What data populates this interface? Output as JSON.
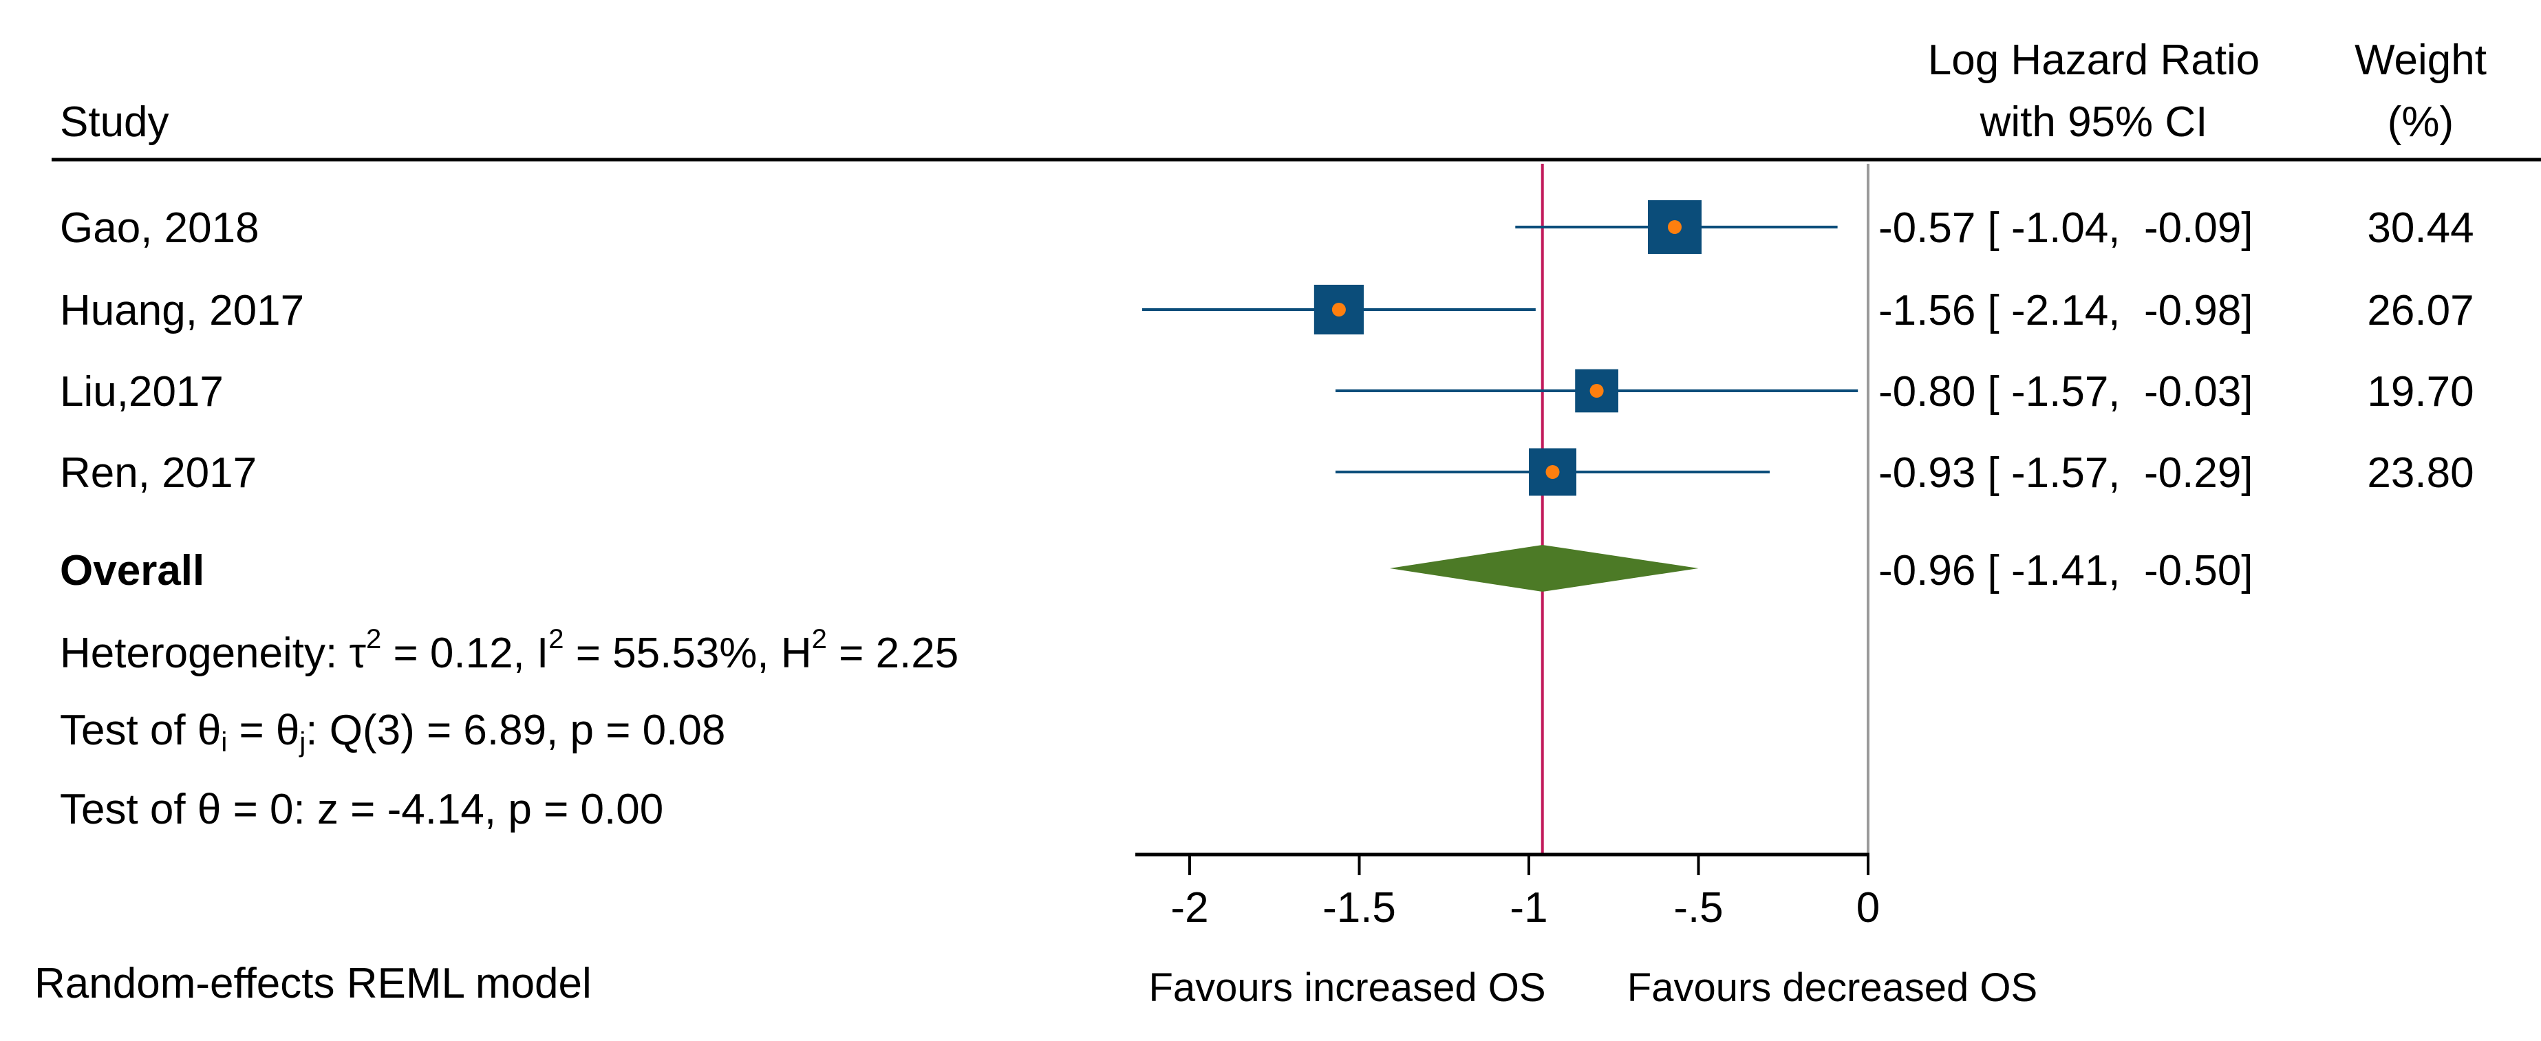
{
  "chart_data": {
    "type": "forest",
    "header": {
      "study": "Study",
      "effect_line1": "Log Hazard Ratio",
      "effect_line2": "with 95% CI",
      "weight_line1": "Weight",
      "weight_line2": "(%)"
    },
    "studies": [
      {
        "name": "Gao, 2018",
        "estimate": -0.57,
        "lower": -1.04,
        "upper": -0.09,
        "weight": 30.44,
        "ci_text": "-0.57 [ -1.04,  -0.09]",
        "weight_text": "30.44"
      },
      {
        "name": "Huang, 2017",
        "estimate": -1.56,
        "lower": -2.14,
        "upper": -0.98,
        "weight": 26.07,
        "ci_text": "-1.56 [ -2.14,  -0.98]",
        "weight_text": "26.07"
      },
      {
        "name": "Liu,2017",
        "estimate": -0.8,
        "lower": -1.57,
        "upper": -0.03,
        "weight": 19.7,
        "ci_text": "-0.80 [ -1.57,  -0.03]",
        "weight_text": "19.70"
      },
      {
        "name": "Ren, 2017",
        "estimate": -0.93,
        "lower": -1.57,
        "upper": -0.29,
        "weight": 23.8,
        "ci_text": "-0.93 [ -1.57,  -0.29]",
        "weight_text": "23.80"
      }
    ],
    "overall": {
      "label": "Overall",
      "estimate": -0.96,
      "lower": -1.41,
      "upper": -0.5,
      "ci_text": "-0.96 [ -1.41,  -0.50]"
    },
    "heterogeneity": {
      "prefix": "Heterogeneity: τ",
      "tau2": " = 0.12, I",
      "i2": " = 55.53%, H",
      "h2": " = 2.25",
      "sup": "2"
    },
    "test_homogeneity": {
      "prefix": "Test of θ",
      "sub_i": "i",
      "mid": " = θ",
      "sub_j": "j",
      "suffix": ": Q(3) = 6.89, p = 0.08"
    },
    "test_overall": "Test of θ = 0: z = -4.14, p = 0.00",
    "x_axis": {
      "ticks": [
        -2,
        -1.5,
        -1,
        -0.5,
        0
      ],
      "tick_labels": [
        "-2",
        "-1.5",
        "-1",
        "-.5",
        "0"
      ],
      "xlim": [
        -2.15,
        0
      ],
      "reference_line": 0,
      "label_left": "Favours increased OS",
      "label_right": "Favours decreased OS"
    },
    "model_note": "Random-effects REML model",
    "colors": {
      "box": "#0b4d7a",
      "point": "#ff7f0e",
      "ci_line": "#0b4d7a",
      "diamond": "#4c7a26",
      "overall_line": "#c21a5b",
      "null_line": "#9a9a9a"
    }
  }
}
